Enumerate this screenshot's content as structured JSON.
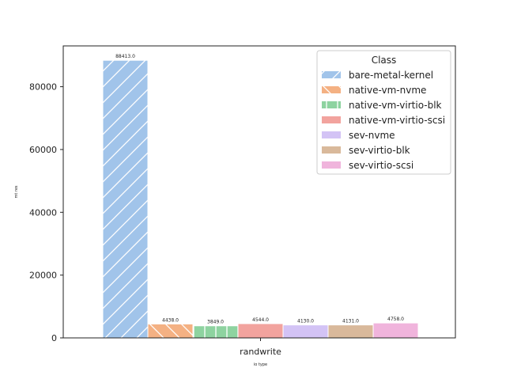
{
  "chart_data": {
    "type": "bar",
    "title": "",
    "xlabel": "io type",
    "ylabel": "mt res",
    "categories": [
      "randwrite"
    ],
    "ylim": [
      0,
      93000
    ],
    "yticks": [
      0,
      20000,
      40000,
      60000,
      80000
    ],
    "ytick_labels": [
      "0",
      "20000",
      "40000",
      "60000",
      "80000"
    ],
    "grid": false,
    "legend": {
      "title": "Class",
      "position": "top-right"
    },
    "series": [
      {
        "name": "bare-metal-kernel",
        "values": [
          88413.0
        ],
        "label": "88413.0",
        "color": "#a1c4ea",
        "hatch": "diag-up"
      },
      {
        "name": "native-vm-nvme",
        "values": [
          4438.0
        ],
        "label": "4438.0",
        "color": "#f4b183",
        "hatch": "diag-down"
      },
      {
        "name": "native-vm-virtio-blk",
        "values": [
          3849.0
        ],
        "label": "3849.0",
        "color": "#8ed3a0",
        "hatch": "vertical"
      },
      {
        "name": "native-vm-virtio-scsi",
        "values": [
          4544.0
        ],
        "label": "4544.0",
        "color": "#f2a39e",
        "hatch": "none"
      },
      {
        "name": "sev-nvme",
        "values": [
          4130.0
        ],
        "label": "4130.0",
        "color": "#d3c3f5",
        "hatch": "none"
      },
      {
        "name": "sev-virtio-blk",
        "values": [
          4131.0
        ],
        "label": "4131.0",
        "color": "#d9b99b",
        "hatch": "none"
      },
      {
        "name": "sev-virtio-scsi",
        "values": [
          4758.0
        ],
        "label": "4758.0",
        "color": "#f0b4dc",
        "hatch": "none"
      }
    ]
  }
}
